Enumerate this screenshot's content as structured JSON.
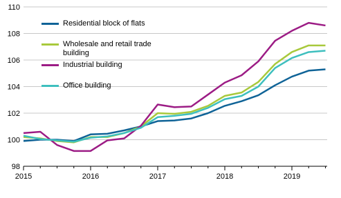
{
  "chart_data": {
    "type": "line",
    "categories": [
      "2015",
      null,
      null,
      null,
      "2016",
      null,
      null,
      null,
      "2017",
      null,
      null,
      null,
      "2018",
      null,
      null,
      null,
      "2019",
      null,
      null
    ],
    "series": [
      {
        "name": "Residential block of flats",
        "color": "#0f6397",
        "values": [
          99.9,
          100.0,
          100.0,
          99.9,
          100.4,
          100.45,
          100.7,
          101.0,
          101.4,
          101.45,
          101.6,
          102.0,
          102.55,
          102.9,
          103.35,
          104.1,
          104.75,
          105.2,
          105.3
        ]
      },
      {
        "name": "Wholesale and retail trade building",
        "color": "#a8c93c",
        "values": [
          100.2,
          100.1,
          99.9,
          99.8,
          100.2,
          100.2,
          100.5,
          101.0,
          102.0,
          101.95,
          102.1,
          102.55,
          103.3,
          103.55,
          104.35,
          105.7,
          106.6,
          107.1,
          107.1
        ]
      },
      {
        "name": "Industrial building",
        "color": "#9c1c85",
        "values": [
          100.5,
          100.6,
          99.6,
          99.15,
          99.15,
          99.95,
          100.1,
          101.05,
          102.65,
          102.45,
          102.5,
          103.4,
          104.3,
          104.85,
          105.9,
          107.45,
          108.2,
          108.8,
          108.6
        ]
      },
      {
        "name": "Office building",
        "color": "#3ebfbe",
        "values": [
          100.3,
          100.05,
          99.95,
          99.85,
          100.15,
          100.25,
          100.5,
          100.9,
          101.7,
          101.8,
          101.95,
          102.4,
          103.05,
          103.3,
          104.0,
          105.4,
          106.15,
          106.6,
          106.7
        ]
      }
    ],
    "ylim": [
      98,
      110
    ],
    "yticks": [
      98,
      100,
      102,
      104,
      106,
      108,
      110
    ],
    "grid": true
  }
}
